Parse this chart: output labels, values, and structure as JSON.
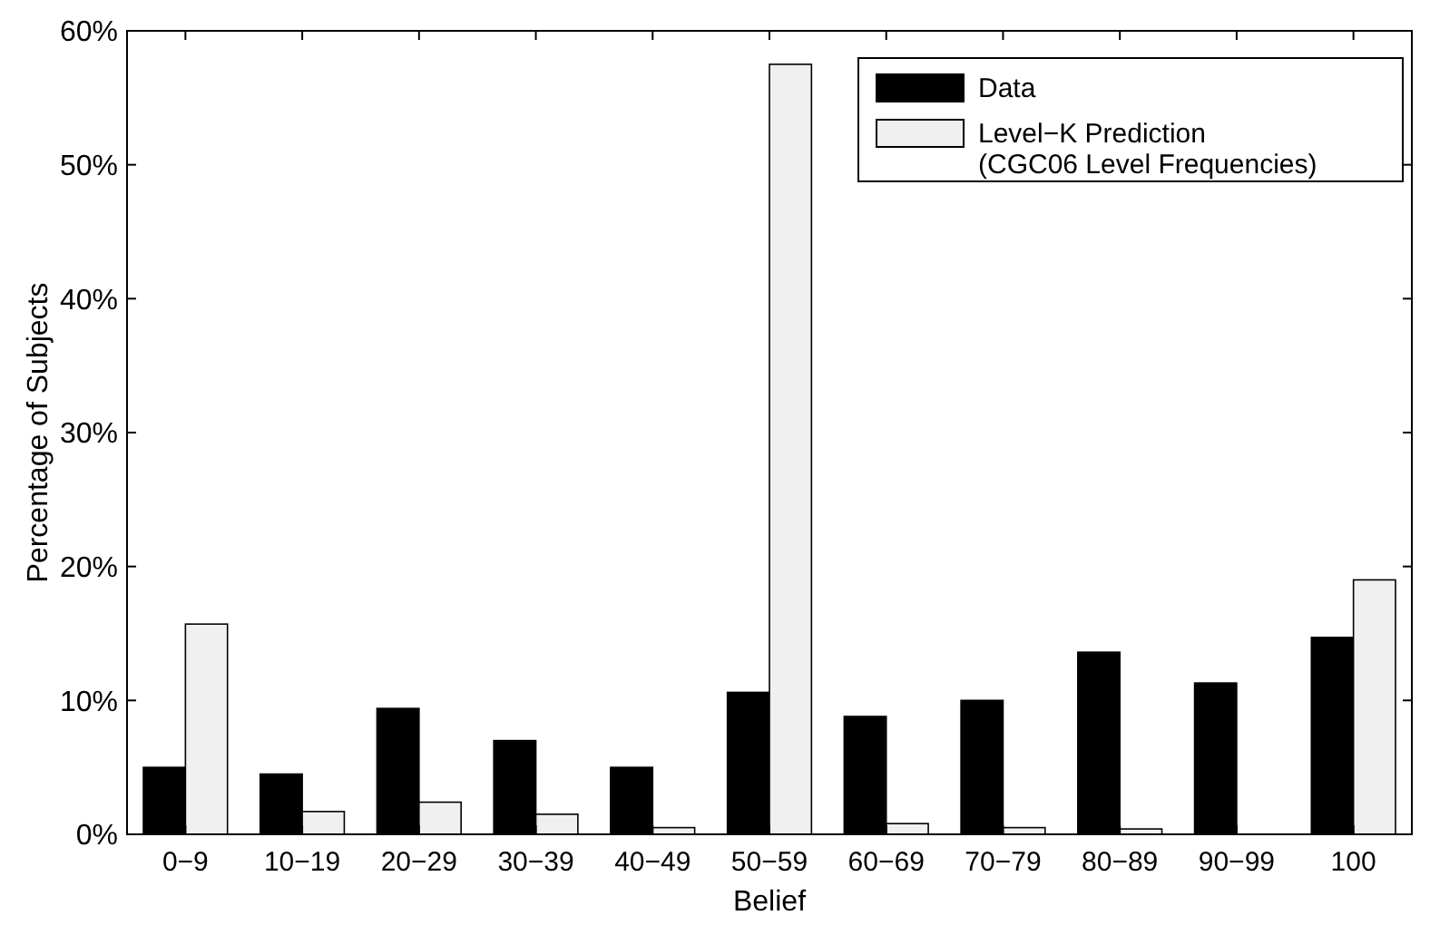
{
  "chart_data": {
    "type": "bar",
    "xlabel": "Belief",
    "ylabel": "Percentage of Subjects",
    "categories": [
      "0−9",
      "10−19",
      "20−29",
      "30−39",
      "40−49",
      "50−59",
      "60−69",
      "70−79",
      "80−89",
      "90−99",
      "100"
    ],
    "series": [
      {
        "name": "Data",
        "color": "#000000",
        "values": [
          5.0,
          4.5,
          9.4,
          7.0,
          5.0,
          10.6,
          8.8,
          10.0,
          13.6,
          11.3,
          14.7
        ]
      },
      {
        "name": "Level−K Prediction\n(CGC06 Level Frequencies)",
        "color": "#f0f0f0",
        "values": [
          15.7,
          1.7,
          2.4,
          1.5,
          0.5,
          57.5,
          0.8,
          0.5,
          0.4,
          0,
          19.0
        ]
      }
    ],
    "ylim": [
      0,
      60
    ],
    "yticks": [
      {
        "value": 0,
        "label": "0%"
      },
      {
        "value": 10,
        "label": "10%"
      },
      {
        "value": 20,
        "label": "20%"
      },
      {
        "value": 30,
        "label": "30%"
      },
      {
        "value": 40,
        "label": "40%"
      },
      {
        "value": 50,
        "label": "50%"
      },
      {
        "value": 60,
        "label": "60%"
      }
    ],
    "legend": "top right",
    "grid": false
  }
}
